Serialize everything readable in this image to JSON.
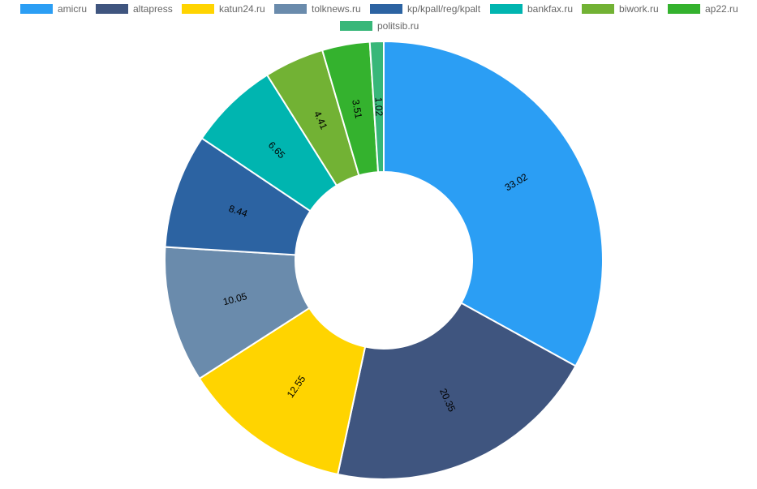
{
  "chart_data": {
    "type": "pie",
    "categories": [
      "amicru",
      "altapress",
      "katun24.ru",
      "tolknews.ru",
      "kp/kpall/reg/kpalt",
      "bankfax.ru",
      "biwork.ru",
      "ap22.ru",
      "politsib.ru"
    ],
    "values": [
      33.02,
      20.35,
      12.55,
      10.05,
      8.44,
      6.65,
      4.41,
      3.51,
      1.02
    ],
    "labels": [
      "33.02",
      "20.35",
      "12.55",
      "10.05",
      "8.44",
      "6.65",
      "4.41",
      "3.51",
      "1.02"
    ],
    "colors": [
      "#2b9ef4",
      "#3f557f",
      "#ffd400",
      "#6a8bac",
      "#2c63a2",
      "#00b5b0",
      "#72b234",
      "#34b22e",
      "#38b779"
    ],
    "legend_position": "top",
    "donut": true
  }
}
